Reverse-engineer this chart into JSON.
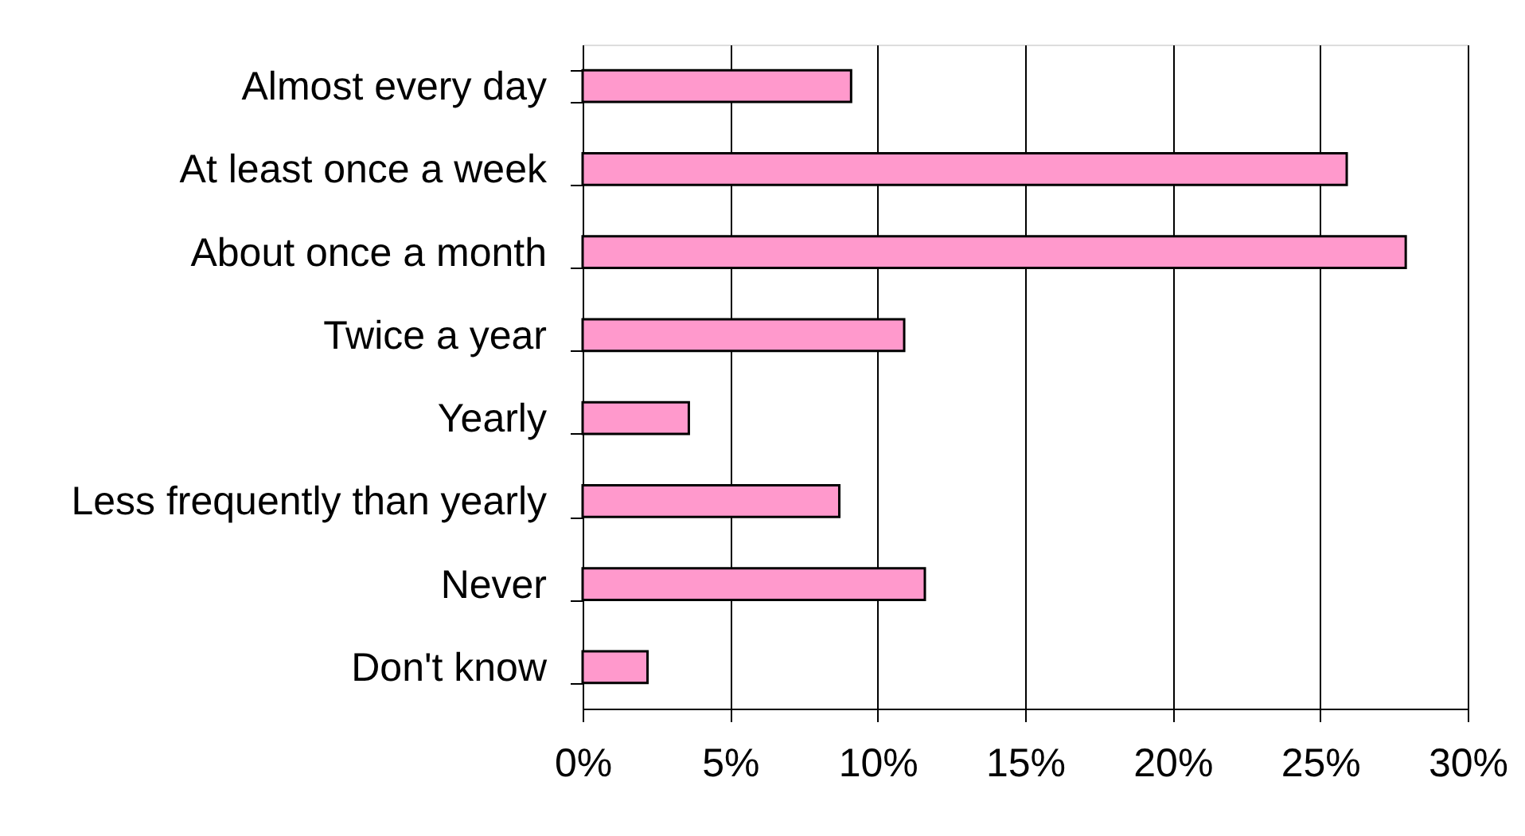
{
  "chart_data": {
    "type": "bar",
    "orientation": "horizontal",
    "categories": [
      "Almost every day",
      "At least once a week",
      "About once a month",
      "Twice a year",
      "Yearly",
      "Less frequently than yearly",
      "Never",
      "Don't know"
    ],
    "values": [
      9.1,
      25.9,
      27.9,
      10.9,
      3.6,
      8.7,
      11.6,
      2.2
    ],
    "color": "#ff99cc",
    "xlim": [
      0,
      30
    ],
    "xticks": [
      {
        "value": 0,
        "label": "0%"
      },
      {
        "value": 5,
        "label": "5%"
      },
      {
        "value": 10,
        "label": "10%"
      },
      {
        "value": 15,
        "label": "15%"
      },
      {
        "value": 20,
        "label": "20%"
      },
      {
        "value": 25,
        "label": "25%"
      },
      {
        "value": 30,
        "label": "30%"
      }
    ],
    "grid": "x"
  }
}
